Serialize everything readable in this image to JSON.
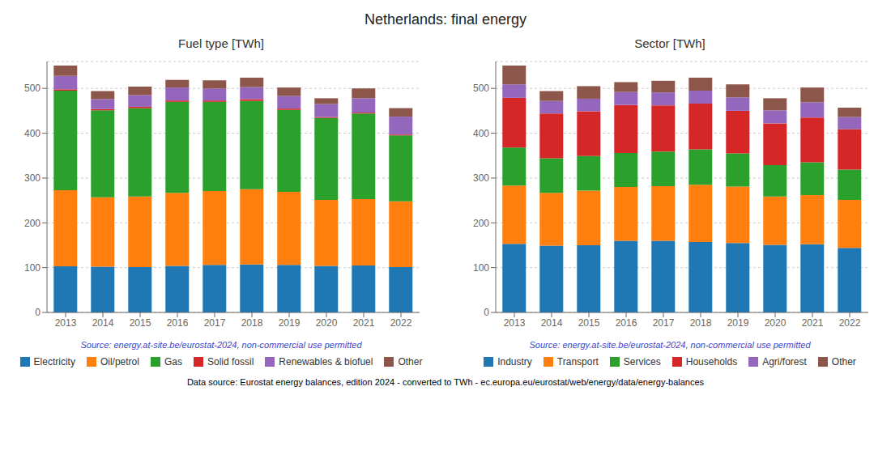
{
  "title": "Netherlands: final energy",
  "annotations": [
    {
      "text": "Data source: Eurostat energy balances, edition 2024 - converted to TWh - ec.europa.eu/eurostat/web/energy/data/energy-balances"
    }
  ],
  "chart_data": [
    {
      "type": "bar",
      "stacked": true,
      "title": "Fuel type [TWh]",
      "categories": [
        2013,
        2014,
        2015,
        2016,
        2017,
        2018,
        2019,
        2020,
        2021,
        2022
      ],
      "series": [
        {
          "name": "Electricity",
          "color": "#1f77b4",
          "values": [
            103,
            102,
            101,
            104,
            106,
            107,
            106,
            104,
            105,
            101
          ]
        },
        {
          "name": "Oil/petrol",
          "color": "#ff7f0e",
          "values": [
            170,
            155,
            158,
            163,
            165,
            168,
            163,
            147,
            148,
            147
          ]
        },
        {
          "name": "Gas",
          "color": "#2ca02c",
          "values": [
            222,
            194,
            197,
            203,
            199,
            197,
            183,
            183,
            191,
            147
          ]
        },
        {
          "name": "Solid fossil",
          "color": "#d62728",
          "values": [
            3,
            3,
            3,
            3,
            3,
            4,
            3,
            2,
            2,
            2
          ]
        },
        {
          "name": "Renewables & biofuel",
          "color": "#9467bd",
          "values": [
            30,
            22,
            26,
            29,
            27,
            27,
            28,
            29,
            32,
            40
          ]
        },
        {
          "name": "Other",
          "color": "#8c564b",
          "values": [
            23,
            18,
            19,
            17,
            18,
            21,
            19,
            13,
            22,
            19
          ]
        }
      ],
      "ylim": [
        0,
        560
      ],
      "yticks": [
        0,
        100,
        200,
        300,
        400,
        500
      ],
      "grid": true,
      "legend": "bottom",
      "annotations": [
        {
          "text": "Source: energy.at-site.be/eurostat-2024, non-commercial use permitted",
          "color": "#4444cc"
        }
      ]
    },
    {
      "type": "bar",
      "stacked": true,
      "title": "Sector [TWh]",
      "categories": [
        2013,
        2014,
        2015,
        2016,
        2017,
        2018,
        2019,
        2020,
        2021,
        2022
      ],
      "series": [
        {
          "name": "Industry",
          "color": "#1f77b4",
          "values": [
            153,
            149,
            150,
            160,
            160,
            157,
            155,
            151,
            152,
            144
          ]
        },
        {
          "name": "Transport",
          "color": "#ff7f0e",
          "values": [
            130,
            118,
            122,
            120,
            122,
            128,
            126,
            108,
            110,
            107
          ]
        },
        {
          "name": "Services",
          "color": "#2ca02c",
          "values": [
            85,
            77,
            77,
            76,
            77,
            79,
            74,
            70,
            73,
            68
          ]
        },
        {
          "name": "Households",
          "color": "#d62728",
          "values": [
            111,
            100,
            100,
            107,
            103,
            102,
            95,
            93,
            100,
            90
          ]
        },
        {
          "name": "Agri/forest",
          "color": "#9467bd",
          "values": [
            30,
            28,
            28,
            29,
            29,
            29,
            30,
            29,
            34,
            27
          ]
        },
        {
          "name": "Other",
          "color": "#8c564b",
          "values": [
            42,
            22,
            28,
            22,
            26,
            29,
            29,
            27,
            33,
            21
          ]
        }
      ],
      "ylim": [
        0,
        560
      ],
      "yticks": [
        0,
        100,
        200,
        300,
        400,
        500
      ],
      "grid": true,
      "legend": "bottom",
      "annotations": [
        {
          "text": "Source: energy.at-site.be/eurostat-2024, non-commercial use permitted",
          "color": "#4444cc"
        }
      ]
    }
  ]
}
